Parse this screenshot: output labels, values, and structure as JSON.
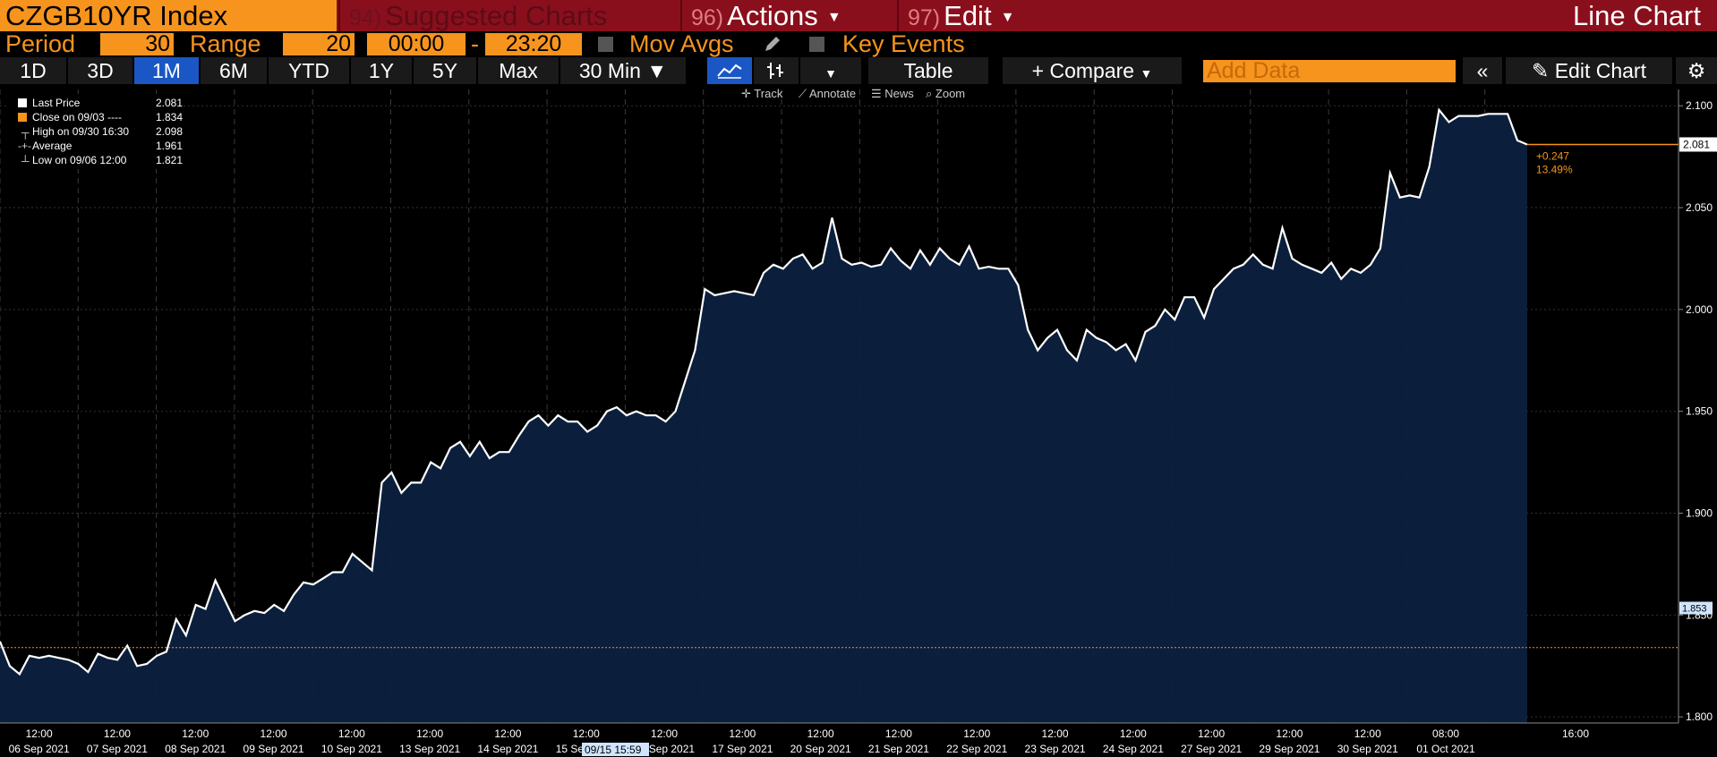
{
  "header": {
    "ticker": "CZGB10YR Index",
    "suggested_num": "94)",
    "suggested_label": "Suggested Charts",
    "actions_num": "96)",
    "actions_label": "Actions",
    "edit_num": "97)",
    "edit_label": "Edit",
    "chart_type": "Line Chart"
  },
  "settings": {
    "period_label": "Period",
    "period_value": "30",
    "range_label": "Range",
    "range_value": "20",
    "time_from": "00:00",
    "time_sep": "-",
    "time_to": "23:20",
    "mov_avgs": "Mov Avgs",
    "key_events": "Key Events"
  },
  "toolbar": {
    "ranges": [
      "1D",
      "3D",
      "1M",
      "6M",
      "YTD",
      "1Y",
      "5Y",
      "Max"
    ],
    "active_range": "1M",
    "interval": "30 Min",
    "table": "Table",
    "compare": "Compare",
    "add_data_placeholder": "Add Data",
    "edit_chart": "Edit Chart"
  },
  "subtools": [
    "Track",
    "Annotate",
    "News",
    "Zoom"
  ],
  "legend": [
    {
      "label": "Last Price",
      "value": "2.081"
    },
    {
      "label": "Close on 09/03 ----",
      "value": "1.834"
    },
    {
      "label": "High on 09/30 16:30",
      "value": "2.098"
    },
    {
      "label": "Average",
      "value": "1.961"
    },
    {
      "label": "Low on 09/06 12:00",
      "value": "1.821"
    }
  ],
  "chart_data": {
    "type": "area",
    "title": "",
    "xlabel": "",
    "ylabel": "",
    "ylim": [
      1.797,
      2.108
    ],
    "yticks": [
      "2.100",
      "2.050",
      "2.000",
      "1.950",
      "1.900",
      "1.850",
      "1.800"
    ],
    "ytick_values": [
      2.1,
      2.05,
      2.0,
      1.95,
      1.9,
      1.85,
      1.8
    ],
    "day_labels": [
      "06 Sep 2021",
      "07 Sep 2021",
      "08 Sep 2021",
      "09 Sep 2021",
      "10 Sep 2021",
      "13 Sep 2021",
      "14 Sep 2021",
      "15 Sep 2021",
      "16 Sep 2021",
      "17 Sep 2021",
      "20 Sep 2021",
      "21 Sep 2021",
      "22 Sep 2021",
      "23 Sep 2021",
      "24 Sep 2021",
      "27 Sep 2021",
      "29 Sep 2021",
      "30 Sep 2021",
      "01 Oct 2021"
    ],
    "time_labels": [
      "12:00",
      "12:00",
      "12:00",
      "12:00",
      "12:00",
      "12:00",
      "12:00",
      "12:00",
      "12:00",
      "12:00",
      "12:00",
      "12:00",
      "12:00",
      "12:00",
      "12:00",
      "12:00",
      "12:00",
      "12:00",
      "08:00",
      "16:00"
    ],
    "crosshair_label": "09/15 15:59",
    "series": [
      {
        "color": "#ffffff",
        "fill": "#0c2140",
        "values": [
          1.837,
          1.825,
          1.821,
          1.83,
          1.829,
          1.83,
          1.829,
          1.828,
          1.826,
          1.822,
          1.831,
          1.829,
          1.828,
          1.835,
          1.825,
          1.826,
          1.83,
          1.832,
          1.848,
          1.84,
          1.855,
          1.853,
          1.867,
          1.857,
          1.847,
          1.85,
          1.852,
          1.851,
          1.855,
          1.852,
          1.86,
          1.866,
          1.865,
          1.868,
          1.871,
          1.871,
          1.88,
          1.876,
          1.872,
          1.915,
          1.92,
          1.91,
          1.915,
          1.915,
          1.925,
          1.922,
          1.932,
          1.935,
          1.928,
          1.935,
          1.927,
          1.93,
          1.93,
          1.938,
          1.945,
          1.948,
          1.943,
          1.948,
          1.945,
          1.945,
          1.94,
          1.943,
          1.95,
          1.952,
          1.948,
          1.95,
          1.948,
          1.948,
          1.945,
          1.95,
          1.965,
          1.98,
          2.01,
          2.007,
          2.008,
          2.009,
          2.008,
          2.007,
          2.018,
          2.022,
          2.02,
          2.025,
          2.027,
          2.02,
          2.023,
          2.045,
          2.025,
          2.022,
          2.023,
          2.021,
          2.022,
          2.03,
          2.024,
          2.02,
          2.029,
          2.022,
          2.03,
          2.025,
          2.022,
          2.031,
          2.02,
          2.021,
          2.02,
          2.02,
          2.012,
          1.99,
          1.98,
          1.986,
          1.99,
          1.98,
          1.975,
          1.99,
          1.986,
          1.984,
          1.98,
          1.983,
          1.975,
          1.989,
          1.992,
          2.0,
          1.995,
          2.006,
          2.006,
          1.996,
          2.01,
          2.015,
          2.02,
          2.022,
          2.027,
          2.022,
          2.02,
          2.04,
          2.025,
          2.022,
          2.02,
          2.018,
          2.023,
          2.015,
          2.02,
          2.018,
          2.022,
          2.03,
          2.067,
          2.055,
          2.056,
          2.055,
          2.07,
          2.098,
          2.092,
          2.095,
          2.095,
          2.095,
          2.096,
          2.096,
          2.096,
          2.083,
          2.081
        ]
      }
    ],
    "last_price": 2.081,
    "reference_line": 1.834,
    "right_marker": "1.853",
    "change_abs": "+0.247",
    "change_pct": "13.49%"
  },
  "colors": {
    "accent": "#f7941d",
    "brand_bar": "#8a0f1c",
    "active": "#1a57c4",
    "area": "#0c2140"
  }
}
